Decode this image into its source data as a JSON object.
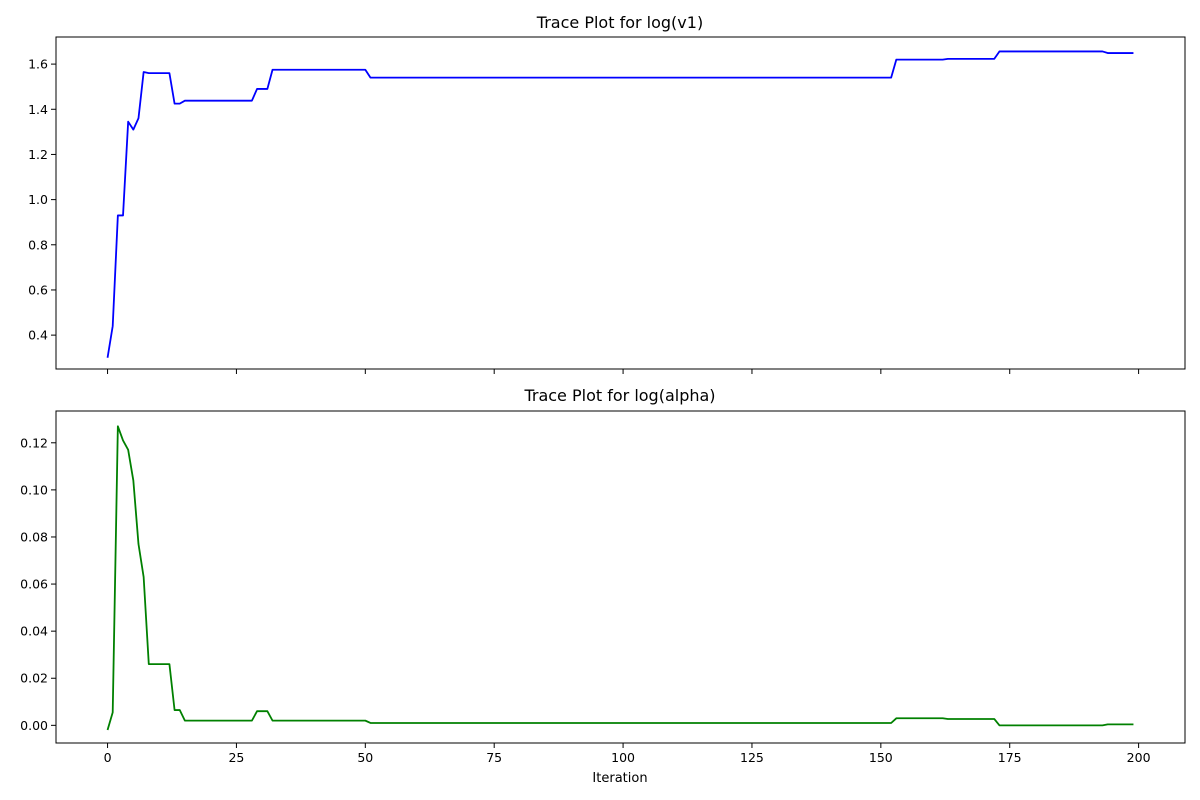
{
  "chart_data": [
    {
      "type": "line",
      "title": "Trace Plot for log(v1)",
      "xlabel": "",
      "ylabel": "",
      "xlim": [
        -10,
        209
      ],
      "ylim": [
        0.25,
        1.72
      ],
      "xticks": [
        0,
        25,
        50,
        75,
        100,
        125,
        150,
        175,
        200
      ],
      "show_xtick_labels": false,
      "yticks": [
        0.4,
        0.6,
        0.8,
        1.0,
        1.2,
        1.4,
        1.6
      ],
      "ytick_labels": [
        "0.4",
        "0.6",
        "0.8",
        "1.0",
        "1.2",
        "1.4",
        "1.6"
      ],
      "grid": false,
      "color": "#0000ff",
      "segments": [
        [
          0,
          0.3
        ],
        [
          1,
          0.44
        ],
        [
          2,
          0.93
        ],
        [
          3,
          0.93
        ],
        [
          4,
          1.345
        ],
        [
          5,
          1.31
        ],
        [
          6,
          1.36
        ],
        [
          7,
          1.565
        ],
        [
          8,
          1.56
        ],
        [
          12,
          1.56
        ],
        [
          13,
          1.425
        ],
        [
          14,
          1.425
        ],
        [
          15,
          1.438
        ],
        [
          28,
          1.438
        ],
        [
          29,
          1.49
        ],
        [
          31,
          1.49
        ],
        [
          32,
          1.575
        ],
        [
          50,
          1.575
        ],
        [
          51,
          1.54
        ],
        [
          152,
          1.54
        ],
        [
          153,
          1.62
        ],
        [
          162,
          1.62
        ],
        [
          163,
          1.623
        ],
        [
          172,
          1.623
        ],
        [
          173,
          1.656
        ],
        [
          193,
          1.656
        ],
        [
          194,
          1.649
        ],
        [
          199,
          1.649
        ]
      ]
    },
    {
      "type": "line",
      "title": "Trace Plot for log(alpha)",
      "xlabel": "Iteration",
      "ylabel": "",
      "xlim": [
        -10,
        209
      ],
      "ylim": [
        -0.0075,
        0.1335
      ],
      "xticks": [
        0,
        25,
        50,
        75,
        100,
        125,
        150,
        175,
        200
      ],
      "xtick_labels": [
        "0",
        "25",
        "50",
        "75",
        "100",
        "125",
        "150",
        "175",
        "200"
      ],
      "show_xtick_labels": true,
      "yticks": [
        0.0,
        0.02,
        0.04,
        0.06,
        0.08,
        0.1,
        0.12
      ],
      "ytick_labels": [
        "0.00",
        "0.02",
        "0.04",
        "0.06",
        "0.08",
        "0.10",
        "0.12"
      ],
      "grid": false,
      "color": "#008000",
      "segments": [
        [
          0,
          -0.002
        ],
        [
          1,
          0.0055
        ],
        [
          2,
          0.127
        ],
        [
          3,
          0.121
        ],
        [
          4,
          0.117
        ],
        [
          5,
          0.104
        ],
        [
          6,
          0.077
        ],
        [
          7,
          0.063
        ],
        [
          8,
          0.026
        ],
        [
          12,
          0.026
        ],
        [
          13,
          0.0065
        ],
        [
          14,
          0.0065
        ],
        [
          15,
          0.002
        ],
        [
          28,
          0.002
        ],
        [
          29,
          0.006
        ],
        [
          31,
          0.006
        ],
        [
          32,
          0.002
        ],
        [
          50,
          0.002
        ],
        [
          51,
          0.001
        ],
        [
          152,
          0.001
        ],
        [
          153,
          0.003
        ],
        [
          162,
          0.003
        ],
        [
          163,
          0.0027
        ],
        [
          172,
          0.0027
        ],
        [
          173,
          0.0
        ],
        [
          193,
          0.0
        ],
        [
          194,
          0.0004
        ],
        [
          199,
          0.0004
        ]
      ]
    }
  ]
}
